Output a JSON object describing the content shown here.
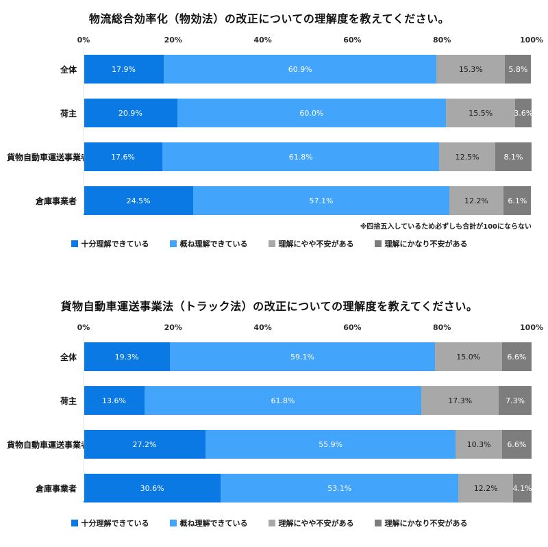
{
  "page": {
    "background": "#ffffff"
  },
  "chart_data": [
    {
      "type": "bar",
      "orientation": "horizontal",
      "stacked": true,
      "title": "物流総合効率化（物効法）の改正についての理解度を教えてください。",
      "note": "※四捨五入しているため必ずしも合計が100にならない",
      "categories": [
        "全体",
        "荷主",
        "貨物自動車運送事業者",
        "倉庫事業者"
      ],
      "series": [
        {
          "name": "十分理解できている",
          "color": "#0b79e3",
          "label_color": "#ffffff",
          "values": [
            17.9,
            20.9,
            17.6,
            24.5
          ]
        },
        {
          "name": "概ね理解できている",
          "color": "#42a5fb",
          "label_color": "#ffffff",
          "values": [
            60.9,
            60.0,
            61.8,
            57.1
          ]
        },
        {
          "name": "理解にやや不安がある",
          "color": "#a8a8a8",
          "label_color": "#1a1a1a",
          "values": [
            15.3,
            15.5,
            12.5,
            12.2
          ]
        },
        {
          "name": "理解にかなり不安がある",
          "color": "#7d7d7d",
          "label_color": "#ffffff",
          "values": [
            5.8,
            3.6,
            8.1,
            6.1
          ]
        }
      ],
      "x_ticks": [
        "0%",
        "20%",
        "40%",
        "60%",
        "80%",
        "100%"
      ],
      "xlim": [
        0,
        100
      ],
      "grid": false,
      "legend_position": "bottom"
    },
    {
      "type": "bar",
      "orientation": "horizontal",
      "stacked": true,
      "title": "貨物自動車運送事業法（トラック法）の改正についての理解度を教えてください。",
      "note": "",
      "categories": [
        "全体",
        "荷主",
        "貨物自動車運送事業者",
        "倉庫事業者"
      ],
      "series": [
        {
          "name": "十分理解できている",
          "color": "#0b79e3",
          "label_color": "#ffffff",
          "values": [
            19.3,
            13.6,
            27.2,
            30.6
          ]
        },
        {
          "name": "概ね理解できている",
          "color": "#42a5fb",
          "label_color": "#ffffff",
          "values": [
            59.1,
            61.8,
            55.9,
            53.1
          ]
        },
        {
          "name": "理解にやや不安がある",
          "color": "#a8a8a8",
          "label_color": "#1a1a1a",
          "values": [
            15.0,
            17.3,
            10.3,
            12.2
          ]
        },
        {
          "name": "理解にかなり不安がある",
          "color": "#7d7d7d",
          "label_color": "#ffffff",
          "values": [
            6.6,
            7.3,
            6.6,
            4.1
          ]
        }
      ],
      "x_ticks": [
        "0%",
        "20%",
        "40%",
        "60%",
        "80%",
        "100%"
      ],
      "xlim": [
        0,
        100
      ],
      "grid": false,
      "legend_position": "bottom"
    }
  ]
}
